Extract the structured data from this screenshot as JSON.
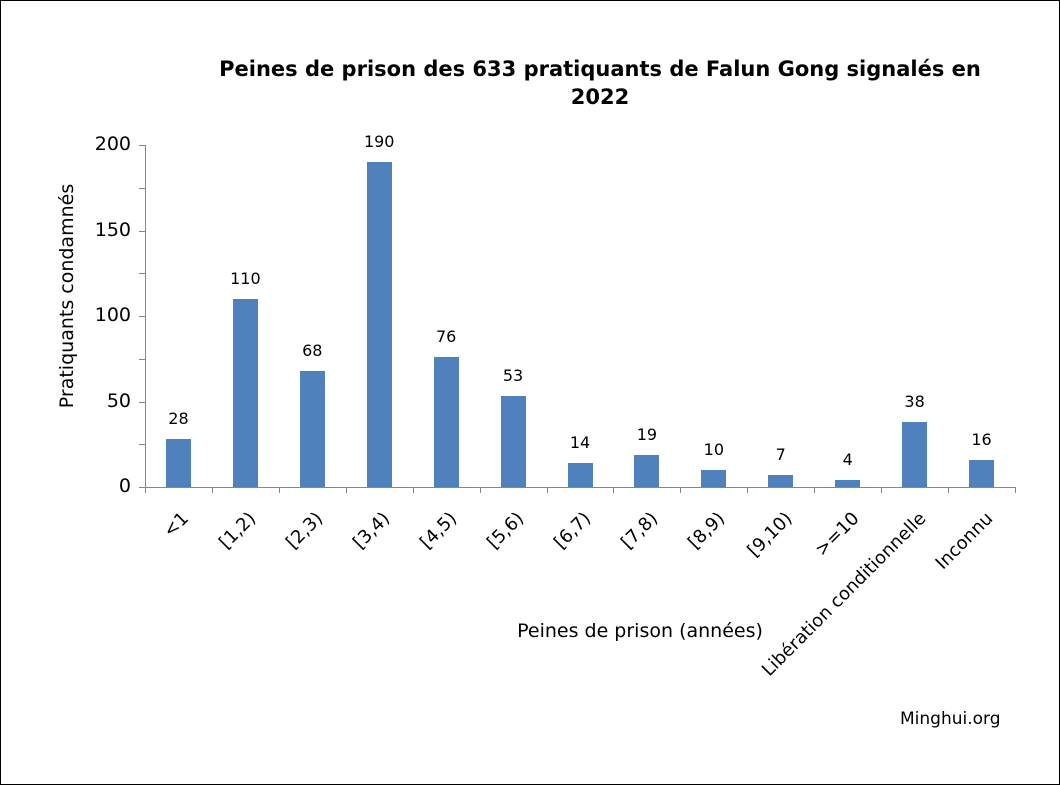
{
  "chart_data": {
    "type": "bar",
    "title": "Peines de prison des 633 pratiquants de Falun Gong  signalés en 2022",
    "title_lines": [
      "Peines de prison des 633 pratiquants de Falun Gong  signalés en",
      "2022"
    ],
    "xlabel": "Peines de prison (années)",
    "ylabel": "Pratiquants condamnés",
    "categories": [
      "<1",
      "[1,2)",
      "[2,3)",
      "[3,4)",
      "[4,5)",
      "[5,6)",
      "[6,7)",
      "[7,8)",
      "[8,9)",
      "[9,10)",
      ">=10",
      "Libération conditionnelle",
      "Inconnu"
    ],
    "values": [
      28,
      110,
      68,
      190,
      76,
      53,
      14,
      19,
      10,
      7,
      4,
      38,
      16
    ],
    "ylim": [
      0,
      200
    ],
    "yticks": [
      0,
      50,
      100,
      150,
      200
    ],
    "grid": false,
    "legend": null,
    "bar_color": "#4f81bd",
    "data_labels": true
  },
  "watermark": "Minghui.org"
}
